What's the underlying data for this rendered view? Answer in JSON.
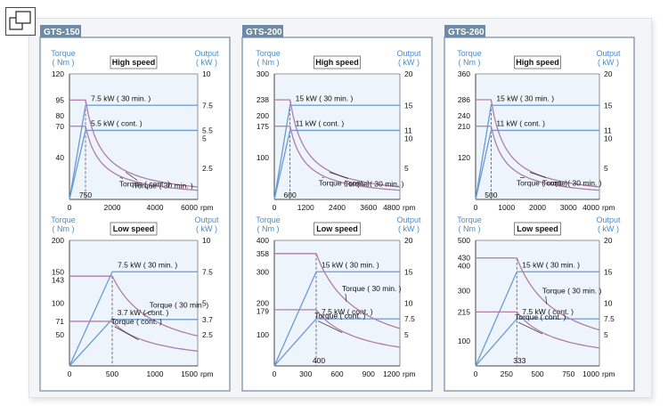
{
  "colors": {
    "axis_blue": "#4a8bc8",
    "panel_border": "#8aa0b8",
    "tab_bg": "#6f8aa6",
    "plot_bg": "#eef4fb",
    "power_line": "#6a9ad6",
    "torque_line": "#b07ea6",
    "grid_dash": "#555555",
    "text": "#111111"
  },
  "toolbar": {
    "fullscreen_icon": "fullscreen-icon"
  },
  "common_labels": {
    "torque": "Torque",
    "torque_unit": "( Nm )",
    "output": "Output",
    "output_unit": "( kW )",
    "rpm": "rpm"
  },
  "chart_data": [
    {
      "type": "line",
      "model": "GTS-150",
      "title": "High speed",
      "xlabel": "rpm",
      "ylabel": "Torque ( Nm )",
      "y2label": "Output ( kW )",
      "xlim": [
        0,
        6000
      ],
      "ylim": [
        0,
        120
      ],
      "y2lim": [
        0,
        10
      ],
      "x_ticks": [
        0,
        2000,
        4000,
        6000
      ],
      "y_ticks": [
        40,
        70,
        80,
        95,
        120
      ],
      "y2_ticks": [
        2.5,
        5,
        5.5,
        7.5,
        10
      ],
      "corner_rpm": 750,
      "corner_label": "750",
      "series": [
        {
          "name": "7.5 kW ( 30 min. )",
          "kind": "power",
          "value": 7.5
        },
        {
          "name": "5.5 kW ( cont. )",
          "kind": "power",
          "value": 5.5
        },
        {
          "name": "Torque ( 30 min. )",
          "kind": "torque",
          "value": 95
        },
        {
          "name": "Torque ( cont. )",
          "kind": "torque",
          "value": 70
        }
      ]
    },
    {
      "type": "line",
      "model": "GTS-200",
      "title": "High speed",
      "xlabel": "rpm",
      "ylabel": "Torque ( Nm )",
      "y2label": "Output ( kW )",
      "xlim": [
        0,
        4800
      ],
      "ylim": [
        0,
        300
      ],
      "y2lim": [
        0,
        20
      ],
      "x_ticks": [
        0,
        1200,
        2400,
        3600,
        4800
      ],
      "y_ticks": [
        100,
        175,
        200,
        238,
        300
      ],
      "y2_ticks": [
        5,
        10,
        11,
        15,
        20
      ],
      "corner_rpm": 600,
      "corner_label": "600",
      "series": [
        {
          "name": "15 kW ( 30 min. )",
          "kind": "power",
          "value": 15
        },
        {
          "name": "11 kW ( cont. )",
          "kind": "power",
          "value": 11
        },
        {
          "name": "Torque ( 30 min. )",
          "kind": "torque",
          "value": 238
        },
        {
          "name": "Torque ( cont. )",
          "kind": "torque",
          "value": 175
        }
      ]
    },
    {
      "type": "line",
      "model": "GTS-260",
      "title": "High speed",
      "xlabel": "rpm",
      "ylabel": "Torque ( Nm )",
      "y2label": "Output ( kW )",
      "xlim": [
        0,
        4000
      ],
      "ylim": [
        0,
        360
      ],
      "y2lim": [
        0,
        20
      ],
      "x_ticks": [
        0,
        1000,
        2000,
        3000,
        4000
      ],
      "y_ticks": [
        120,
        210,
        240,
        286,
        360
      ],
      "y2_ticks": [
        5,
        10,
        11,
        15,
        20
      ],
      "corner_rpm": 500,
      "corner_label": "500",
      "series": [
        {
          "name": "15 kW ( 30 min. )",
          "kind": "power",
          "value": 15
        },
        {
          "name": "11 kW ( cont. )",
          "kind": "power",
          "value": 11
        },
        {
          "name": "Torque ( 30 min. )",
          "kind": "torque",
          "value": 286
        },
        {
          "name": "Torque ( cont. )",
          "kind": "torque",
          "value": 210
        }
      ]
    },
    {
      "type": "line",
      "model": "GTS-150",
      "title": "Low speed",
      "xlabel": "rpm",
      "ylabel": "Torque ( Nm )",
      "y2label": "Output ( kW )",
      "xlim": [
        0,
        1500
      ],
      "ylim": [
        0,
        200
      ],
      "y2lim": [
        0,
        10
      ],
      "x_ticks": [
        0,
        500,
        1000,
        1500
      ],
      "y_ticks": [
        50,
        71,
        100,
        143,
        150,
        200
      ],
      "y2_ticks": [
        2.5,
        3.7,
        5,
        7.5,
        10
      ],
      "corner_rpm": 500,
      "corner_label": "",
      "series": [
        {
          "name": "7.5 kW ( 30 min. )",
          "kind": "power",
          "value": 7.5
        },
        {
          "name": "3.7 kW ( cont. )",
          "kind": "power",
          "value": 3.7
        },
        {
          "name": "Torque ( 30 min. )",
          "kind": "torque",
          "value": 143
        },
        {
          "name": "Torque ( cont. )",
          "kind": "torque",
          "value": 71
        }
      ]
    },
    {
      "type": "line",
      "model": "GTS-200",
      "title": "Low speed",
      "xlabel": "rpm",
      "ylabel": "Torque ( Nm )",
      "y2label": "Output ( kW )",
      "xlim": [
        0,
        1200
      ],
      "ylim": [
        0,
        400
      ],
      "y2lim": [
        0,
        20
      ],
      "x_ticks": [
        0,
        300,
        600,
        900,
        1200
      ],
      "y_ticks": [
        100,
        179,
        200,
        300,
        358,
        400
      ],
      "y2_ticks": [
        5,
        7.5,
        10,
        15,
        20
      ],
      "corner_rpm": 400,
      "corner_label": "400",
      "series": [
        {
          "name": "15 kW ( 30 min. )",
          "kind": "power",
          "value": 15
        },
        {
          "name": "7.5 kW ( cont. )",
          "kind": "power",
          "value": 7.5
        },
        {
          "name": "Torque ( 30 min. )",
          "kind": "torque",
          "value": 358
        },
        {
          "name": "Torque ( cont. )",
          "kind": "torque",
          "value": 179
        }
      ]
    },
    {
      "type": "line",
      "model": "GTS-260",
      "title": "Low speed",
      "xlabel": "rpm",
      "ylabel": "Torque ( Nm )",
      "y2label": "Output ( kW )",
      "xlim": [
        0,
        1000
      ],
      "ylim": [
        0,
        500
      ],
      "y2lim": [
        0,
        20
      ],
      "x_ticks": [
        0,
        250,
        500,
        750,
        1000
      ],
      "y_ticks": [
        100,
        215,
        300,
        400,
        430,
        500
      ],
      "y2_ticks": [
        5,
        7.5,
        10,
        15,
        20
      ],
      "corner_rpm": 333,
      "corner_label": "333",
      "series": [
        {
          "name": "15 kW ( 30 min. )",
          "kind": "power",
          "value": 15
        },
        {
          "name": "7.5 kW ( cont. )",
          "kind": "power",
          "value": 7.5
        },
        {
          "name": "Torque ( 30 min. )",
          "kind": "torque",
          "value": 430
        },
        {
          "name": "Torque ( cont. )",
          "kind": "torque",
          "value": 215
        }
      ]
    }
  ]
}
